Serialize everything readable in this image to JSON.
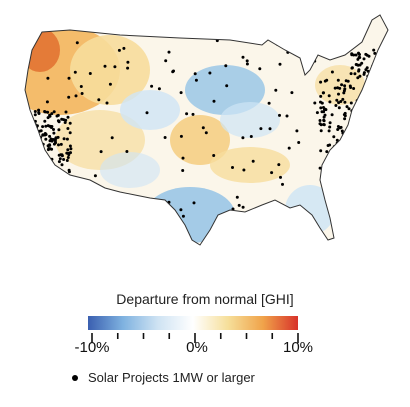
{
  "colorbar": {
    "title": "Departure from normal  [GHI]",
    "ticks": [
      "-10%",
      "0%",
      "10%"
    ],
    "stops": [
      "#3a5fb0",
      "#7fb2e0",
      "#cfe3f3",
      "#ffffff",
      "#f6df9a",
      "#f0a34a",
      "#d8322a"
    ]
  },
  "legend": {
    "marker": "dot",
    "label": "Solar Projects 1MW or larger"
  },
  "colors": {
    "land_base": "#fbf6ea",
    "border": "#333333",
    "warm_light": "#f7dd9c",
    "warm_mid": "#f2b155",
    "warm_strong": "#e06a2c",
    "cool_light": "#cfe5f5",
    "cool_mid": "#8ec0e6",
    "project_dot": "#000000"
  }
}
